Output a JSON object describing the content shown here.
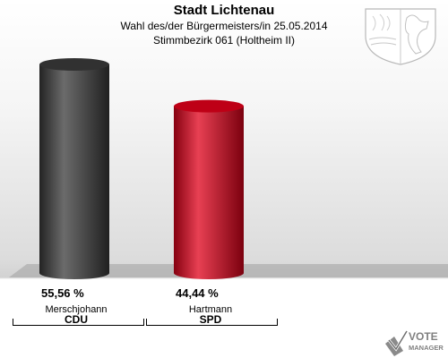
{
  "header": {
    "title": "Stadt Lichtenau",
    "subtitle1": "Wahl des/der Bürgermeisters/in  25.05.2014",
    "subtitle2": "Stimmbezirk 061 (Holtheim II)"
  },
  "logo": {
    "line1": "VOTE",
    "line2": "MANAGER"
  },
  "colors": {
    "cdu": "#3a3a3a",
    "spd": "#e0001a"
  },
  "chart_data": {
    "type": "bar",
    "categories": [
      "Merschjohann",
      "Hartmann"
    ],
    "parties": [
      "CDU",
      "SPD"
    ],
    "values": [
      55.56,
      44.44
    ],
    "value_labels": [
      "55,56 %",
      "44,44 %"
    ],
    "ylim": [
      0,
      55.56
    ],
    "title": "",
    "xlabel": "",
    "ylabel": ""
  }
}
